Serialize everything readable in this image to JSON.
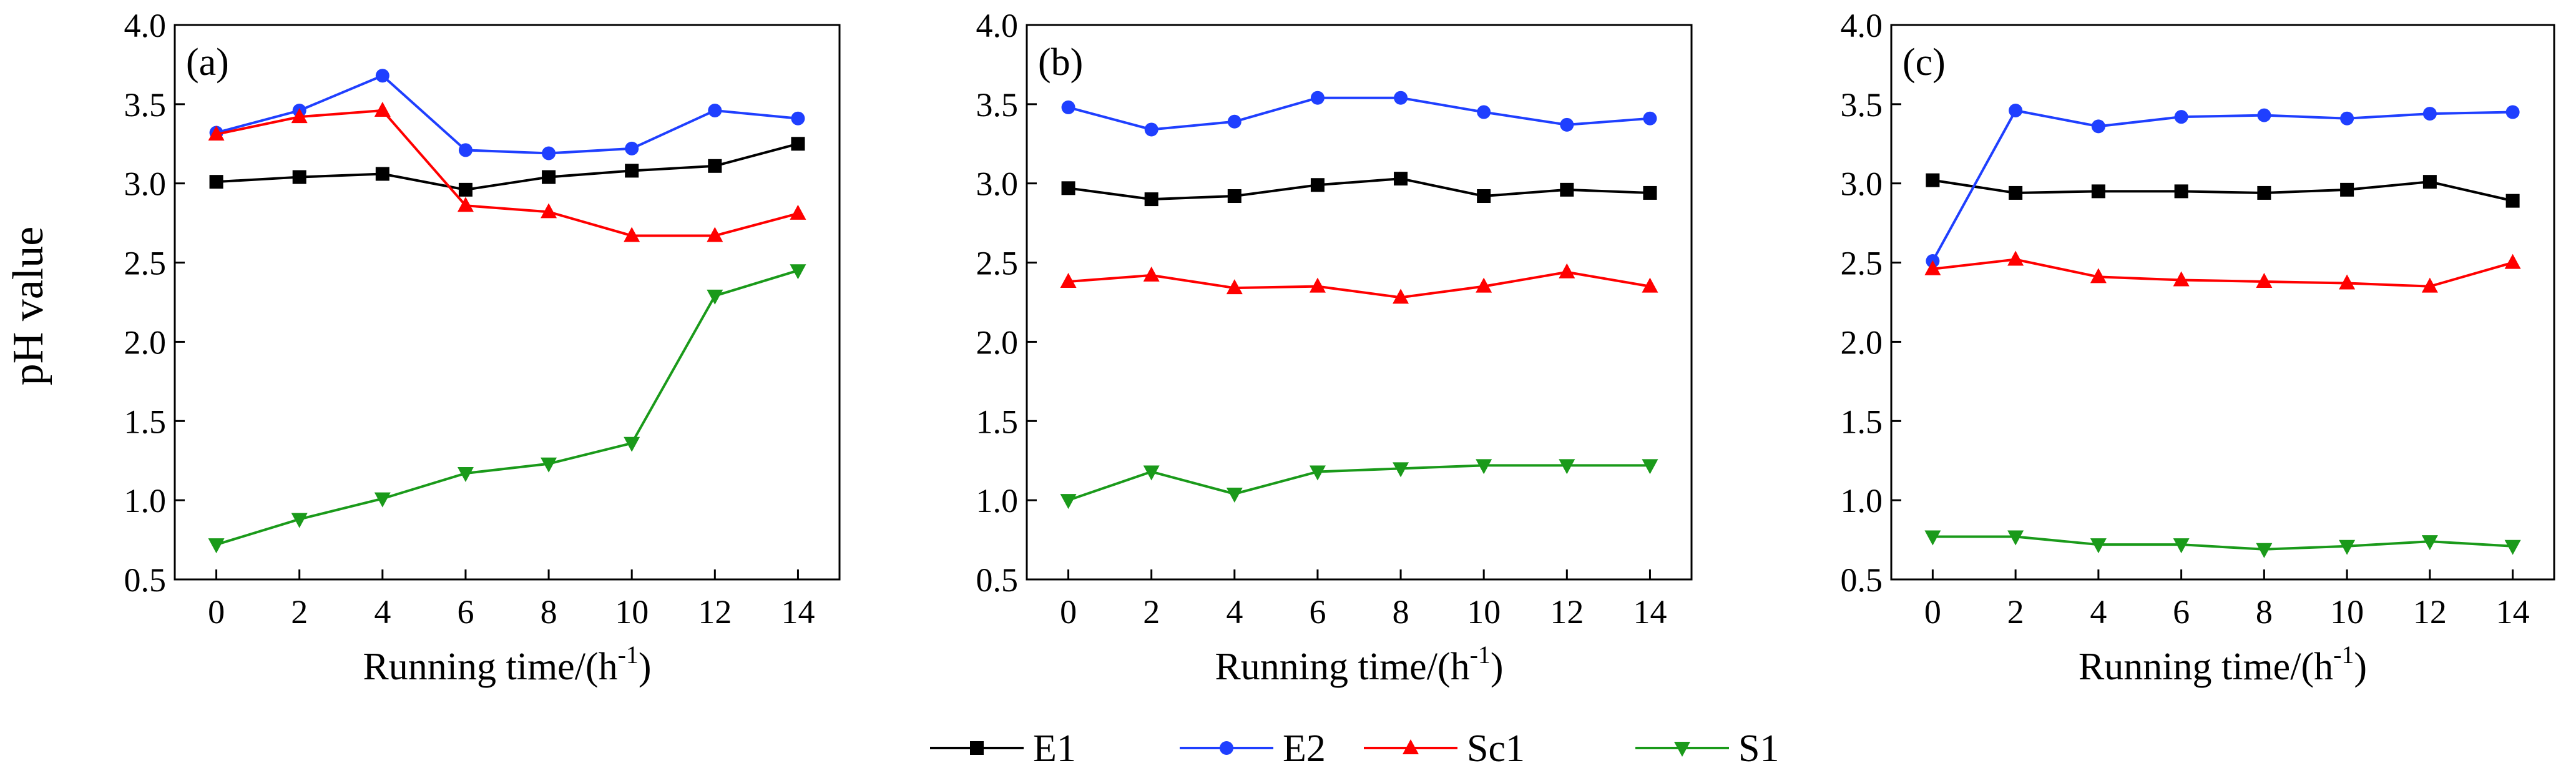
{
  "shared": {
    "ylabel": "pH value",
    "xlabel_main": "Running time/(h",
    "xlabel_sup": "-1",
    "xlabel_end": ")"
  },
  "legend": [
    {
      "name": "E1",
      "color": "#000000",
      "marker": "square"
    },
    {
      "name": "E2",
      "color": "#1f3fff",
      "marker": "circle"
    },
    {
      "name": "Sc1",
      "color": "#ff0000",
      "marker": "triangle-up"
    },
    {
      "name": "S1",
      "color": "#1a9a1a",
      "marker": "triangle-down"
    }
  ],
  "chart_data": [
    {
      "type": "line",
      "panel_label": "(a)",
      "x": [
        0,
        2,
        4,
        6,
        8,
        10,
        12,
        14
      ],
      "xticks": [
        0,
        2,
        4,
        6,
        8,
        10,
        12,
        14
      ],
      "xlim": [
        -1,
        15
      ],
      "yticks": [
        0.5,
        1.0,
        1.5,
        2.0,
        2.5,
        3.0,
        3.5,
        4.0
      ],
      "ylim": [
        0.5,
        4.0
      ],
      "ylabel": "pH value",
      "xlabel": "Running time/(h-1)",
      "series": [
        {
          "name": "E1",
          "values": [
            3.01,
            3.04,
            3.06,
            2.96,
            3.04,
            3.08,
            3.11,
            3.25
          ]
        },
        {
          "name": "E2",
          "values": [
            3.32,
            3.46,
            3.68,
            3.21,
            3.19,
            3.22,
            3.46,
            3.41
          ]
        },
        {
          "name": "Sc1",
          "values": [
            3.31,
            3.42,
            3.46,
            2.86,
            2.82,
            2.67,
            2.67,
            2.81
          ]
        },
        {
          "name": "S1",
          "values": [
            0.72,
            0.88,
            1.01,
            1.17,
            1.23,
            1.36,
            2.29,
            2.45
          ]
        }
      ]
    },
    {
      "type": "line",
      "panel_label": "(b)",
      "x": [
        0,
        2,
        4,
        6,
        8,
        10,
        12,
        14
      ],
      "xticks": [
        0,
        2,
        4,
        6,
        8,
        10,
        12,
        14
      ],
      "xlim": [
        -1,
        15
      ],
      "yticks": [
        0.5,
        1.0,
        1.5,
        2.0,
        2.5,
        3.0,
        3.5,
        4.0
      ],
      "ylim": [
        0.5,
        4.0
      ],
      "xlabel": "Running time/(h-1)",
      "series": [
        {
          "name": "E1",
          "values": [
            2.97,
            2.9,
            2.92,
            2.99,
            3.03,
            2.92,
            2.96,
            2.94
          ]
        },
        {
          "name": "E2",
          "values": [
            3.48,
            3.34,
            3.39,
            3.54,
            3.54,
            3.45,
            3.37,
            3.41
          ]
        },
        {
          "name": "Sc1",
          "values": [
            2.38,
            2.42,
            2.34,
            2.35,
            2.28,
            2.35,
            2.44,
            2.35
          ]
        },
        {
          "name": "S1",
          "values": [
            1.0,
            1.18,
            1.04,
            1.18,
            1.2,
            1.22,
            1.22,
            1.22
          ]
        }
      ]
    },
    {
      "type": "line",
      "panel_label": "(c)",
      "x": [
        0,
        2,
        4,
        6,
        8,
        10,
        12,
        14
      ],
      "xticks": [
        0,
        2,
        4,
        6,
        8,
        10,
        12,
        14
      ],
      "xlim": [
        -1,
        15
      ],
      "yticks": [
        0.5,
        1.0,
        1.5,
        2.0,
        2.5,
        3.0,
        3.5,
        4.0
      ],
      "ylim": [
        0.5,
        4.0
      ],
      "xlabel": "Running time/(h-1)",
      "series": [
        {
          "name": "E1",
          "values": [
            3.02,
            2.94,
            2.95,
            2.95,
            2.94,
            2.96,
            3.01,
            2.89
          ]
        },
        {
          "name": "E2",
          "values": [
            2.51,
            3.46,
            3.36,
            3.42,
            3.43,
            3.41,
            3.44,
            3.45
          ]
        },
        {
          "name": "Sc1",
          "values": [
            2.46,
            2.52,
            2.41,
            2.39,
            2.38,
            2.37,
            2.35,
            2.5
          ]
        },
        {
          "name": "S1",
          "values": [
            0.77,
            0.77,
            0.72,
            0.72,
            0.69,
            0.71,
            0.74,
            0.71
          ]
        }
      ]
    }
  ]
}
